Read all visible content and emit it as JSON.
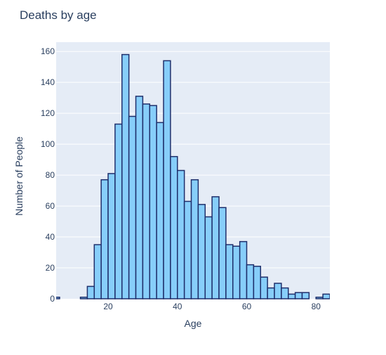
{
  "chart_data": {
    "type": "bar",
    "title": "Deaths by age",
    "xlabel": "Age",
    "ylabel": "Number of People",
    "xlim": [
      5,
      84
    ],
    "ylim": [
      0,
      166
    ],
    "x_ticks": [
      20,
      40,
      60,
      80
    ],
    "y_ticks": [
      0,
      20,
      40,
      60,
      80,
      100,
      120,
      140,
      160
    ],
    "grid": true,
    "bin_width": 2,
    "bins": [
      {
        "x0": 4,
        "x1": 6,
        "value": 1
      },
      {
        "x0": 12,
        "x1": 14,
        "value": 1
      },
      {
        "x0": 14,
        "x1": 16,
        "value": 8
      },
      {
        "x0": 16,
        "x1": 18,
        "value": 35
      },
      {
        "x0": 18,
        "x1": 20,
        "value": 77
      },
      {
        "x0": 20,
        "x1": 22,
        "value": 81
      },
      {
        "x0": 22,
        "x1": 24,
        "value": 113
      },
      {
        "x0": 24,
        "x1": 26,
        "value": 158
      },
      {
        "x0": 26,
        "x1": 28,
        "value": 118
      },
      {
        "x0": 28,
        "x1": 30,
        "value": 131
      },
      {
        "x0": 30,
        "x1": 32,
        "value": 126
      },
      {
        "x0": 32,
        "x1": 34,
        "value": 125
      },
      {
        "x0": 34,
        "x1": 36,
        "value": 114
      },
      {
        "x0": 36,
        "x1": 38,
        "value": 154
      },
      {
        "x0": 38,
        "x1": 40,
        "value": 92
      },
      {
        "x0": 40,
        "x1": 42,
        "value": 83
      },
      {
        "x0": 42,
        "x1": 44,
        "value": 63
      },
      {
        "x0": 44,
        "x1": 46,
        "value": 77
      },
      {
        "x0": 46,
        "x1": 48,
        "value": 61
      },
      {
        "x0": 48,
        "x1": 50,
        "value": 53
      },
      {
        "x0": 50,
        "x1": 52,
        "value": 66
      },
      {
        "x0": 52,
        "x1": 54,
        "value": 59
      },
      {
        "x0": 54,
        "x1": 56,
        "value": 35
      },
      {
        "x0": 56,
        "x1": 58,
        "value": 34
      },
      {
        "x0": 58,
        "x1": 60,
        "value": 37
      },
      {
        "x0": 60,
        "x1": 62,
        "value": 22
      },
      {
        "x0": 62,
        "x1": 64,
        "value": 21
      },
      {
        "x0": 64,
        "x1": 66,
        "value": 14
      },
      {
        "x0": 66,
        "x1": 68,
        "value": 7
      },
      {
        "x0": 68,
        "x1": 70,
        "value": 10
      },
      {
        "x0": 70,
        "x1": 72,
        "value": 7
      },
      {
        "x0": 72,
        "x1": 74,
        "value": 3
      },
      {
        "x0": 74,
        "x1": 76,
        "value": 4
      },
      {
        "x0": 76,
        "x1": 78,
        "value": 4
      },
      {
        "x0": 80,
        "x1": 82,
        "value": 1
      },
      {
        "x0": 82,
        "x1": 84,
        "value": 3
      }
    ],
    "colors": {
      "bar_fill": "#87cefa",
      "bar_stroke": "#1f2f6b",
      "plot_bg": "#e5ecf6",
      "grid": "#ffffff"
    }
  }
}
